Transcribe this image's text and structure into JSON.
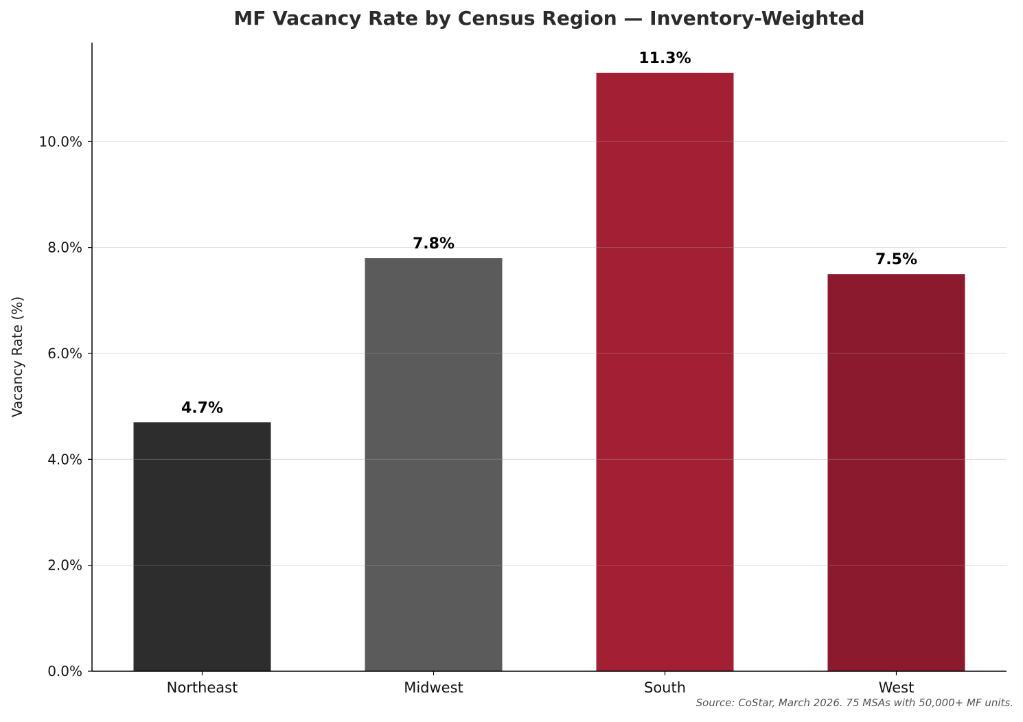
{
  "chart_data": {
    "type": "bar",
    "title": "MF Vacancy Rate by Census Region — Inventory-Weighted",
    "xlabel": "",
    "ylabel": "Vacancy Rate (%)",
    "categories": [
      "Northeast",
      "Midwest",
      "South",
      "West"
    ],
    "values": [
      4.7,
      7.8,
      11.3,
      7.5
    ],
    "data_labels": [
      "4.7%",
      "7.8%",
      "11.3%",
      "7.5%"
    ],
    "colors": [
      "#2d2d2d",
      "#5b5b5b",
      "#a31f34",
      "#8b1a2e"
    ],
    "ylim": [
      0,
      11.87
    ],
    "yticks": [
      0,
      2,
      4,
      6,
      8,
      10
    ],
    "ytick_labels": [
      "0.0%",
      "2.0%",
      "4.0%",
      "6.0%",
      "8.0%",
      "10.0%"
    ],
    "grid": "y",
    "legend": "none",
    "source_note": "Source: CoStar, March 2026. 75 MSAs with 50,000+ MF units."
  }
}
